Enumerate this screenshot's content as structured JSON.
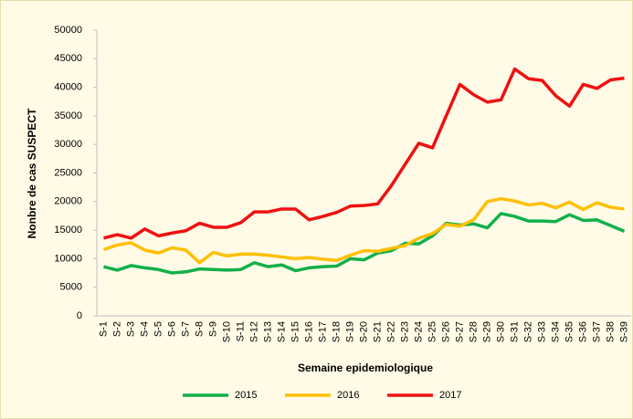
{
  "chart_data": {
    "type": "line",
    "y_label": "Nonbre de cas SUSPECT",
    "x_label": "Semaine epidemiologique",
    "categories": [
      "S-1",
      "S-2",
      "S-3",
      "S-4",
      "S-5",
      "S-6",
      "S-7",
      "S-8",
      "S-9",
      "S-10",
      "S-11",
      "S-12",
      "S-13",
      "S-14",
      "S-15",
      "S-16",
      "S-17",
      "S-18",
      "S-19",
      "S-20",
      "S-21",
      "S-22",
      "S-23",
      "S-24",
      "S-25",
      "S-26",
      "S-27",
      "S-28",
      "S-29",
      "S-30",
      "S-31",
      "S-32",
      "S-33",
      "S-34",
      "S-35",
      "S-36",
      "S-37",
      "S-38",
      "S-39"
    ],
    "series": [
      {
        "name": "2015",
        "color": "#12b04a",
        "values": [
          8600,
          8000,
          8800,
          8400,
          8100,
          7500,
          7700,
          8200,
          8100,
          8000,
          8100,
          9300,
          8600,
          8900,
          7900,
          8400,
          8600,
          8700,
          10000,
          9800,
          11000,
          11400,
          12700,
          12600,
          14000,
          16200,
          15900,
          16100,
          15400,
          17900,
          17400,
          16600,
          16600,
          16500,
          17700,
          16700,
          16800,
          15800,
          14800
        ]
      },
      {
        "name": "2016",
        "color": "#ffc000",
        "values": [
          11600,
          12400,
          12800,
          11500,
          11000,
          11900,
          11500,
          9300,
          11100,
          10500,
          10800,
          10800,
          10600,
          10300,
          10000,
          10200,
          9900,
          9700,
          10600,
          11400,
          11300,
          11800,
          12300,
          13600,
          14400,
          16000,
          15700,
          16800,
          20000,
          20500,
          20100,
          19400,
          19700,
          18900,
          19900,
          18600,
          19800,
          19000,
          18700
        ]
      },
      {
        "name": "2017",
        "color": "#ee1111",
        "values": [
          13600,
          14200,
          13600,
          15200,
          14000,
          14500,
          14900,
          16200,
          15500,
          15500,
          16300,
          18200,
          18200,
          18700,
          18700,
          16800,
          17400,
          18100,
          19200,
          19300,
          19600,
          22800,
          26500,
          30200,
          29400,
          35000,
          40500,
          38700,
          37400,
          37800,
          43200,
          41500,
          41200,
          38500,
          36700,
          40500,
          39800,
          41300,
          41600
        ]
      }
    ],
    "ylim": [
      0,
      50000
    ],
    "yticks": [
      0,
      5000,
      10000,
      15000,
      20000,
      25000,
      30000,
      35000,
      40000,
      45000,
      50000
    ],
    "grid": false,
    "legend": "bottom"
  }
}
